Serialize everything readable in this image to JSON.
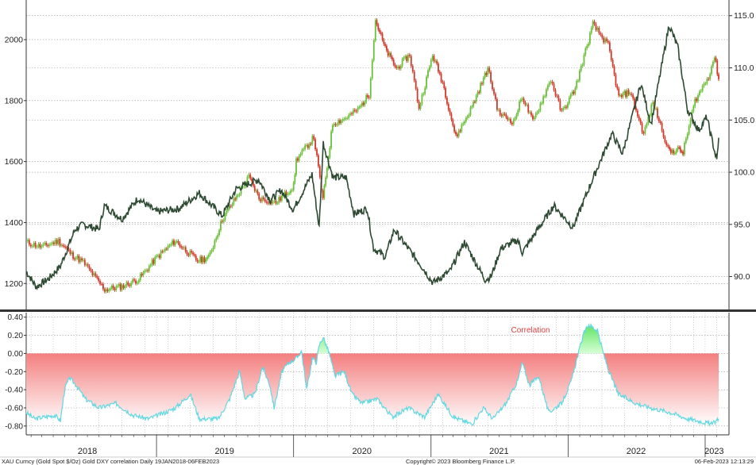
{
  "chart_data": [
    {
      "type": "line",
      "panel": "top",
      "y_left": {
        "ticks": [
          1200,
          1400,
          1600,
          1800,
          2000
        ],
        "lim": [
          1120,
          2130
        ]
      },
      "y_right": {
        "ticks": [
          "90.0",
          "95.0",
          "100.0",
          "105.0",
          "110.0",
          "115.0"
        ],
        "lim": [
          87,
          116.5
        ]
      },
      "grid": true,
      "series": [
        {
          "axis": "left",
          "style": "candlestick",
          "color": "#6bbf3a",
          "down_color": "#d13a2a",
          "points": [
            [
              "2018-01-19",
              1335
            ],
            [
              "2018-03-01",
              1320
            ],
            [
              "2018-04-15",
              1340
            ],
            [
              "2018-05-20",
              1295
            ],
            [
              "2018-06-20",
              1270
            ],
            [
              "2018-08-16",
              1180
            ],
            [
              "2018-10-01",
              1190
            ],
            [
              "2018-11-15",
              1215
            ],
            [
              "2019-01-01",
              1285
            ],
            [
              "2019-02-20",
              1340
            ],
            [
              "2019-04-20",
              1275
            ],
            [
              "2019-05-20",
              1285
            ],
            [
              "2019-06-25",
              1410
            ],
            [
              "2019-08-10",
              1500
            ],
            [
              "2019-09-04",
              1550
            ],
            [
              "2019-10-01",
              1480
            ],
            [
              "2019-11-15",
              1465
            ],
            [
              "2020-01-01",
              1520
            ],
            [
              "2020-01-08",
              1605
            ],
            [
              "2020-02-24",
              1680
            ],
            [
              "2020-03-19",
              1475
            ],
            [
              "2020-04-14",
              1725
            ],
            [
              "2020-05-15",
              1740
            ],
            [
              "2020-06-20",
              1770
            ],
            [
              "2020-07-20",
              1820
            ],
            [
              "2020-08-06",
              2065
            ],
            [
              "2020-09-01",
              1970
            ],
            [
              "2020-10-01",
              1905
            ],
            [
              "2020-11-05",
              1950
            ],
            [
              "2020-11-30",
              1775
            ],
            [
              "2021-01-05",
              1950
            ],
            [
              "2021-02-01",
              1860
            ],
            [
              "2021-03-08",
              1680
            ],
            [
              "2021-04-20",
              1780
            ],
            [
              "2021-06-01",
              1905
            ],
            [
              "2021-06-30",
              1760
            ],
            [
              "2021-08-09",
              1730
            ],
            [
              "2021-09-01",
              1815
            ],
            [
              "2021-09-29",
              1730
            ],
            [
              "2021-11-16",
              1870
            ],
            [
              "2021-12-15",
              1760
            ],
            [
              "2022-01-20",
              1840
            ],
            [
              "2022-03-08",
              2050
            ],
            [
              "2022-04-18",
              1980
            ],
            [
              "2022-05-16",
              1810
            ],
            [
              "2022-06-15",
              1830
            ],
            [
              "2022-07-21",
              1690
            ],
            [
              "2022-08-15",
              1795
            ],
            [
              "2022-09-28",
              1630
            ],
            [
              "2022-10-20",
              1640
            ],
            [
              "2022-11-03",
              1630
            ],
            [
              "2022-12-05",
              1800
            ],
            [
              "2023-01-10",
              1880
            ],
            [
              "2023-01-26",
              1945
            ],
            [
              "2023-02-06",
              1870
            ]
          ]
        },
        {
          "axis": "right",
          "style": "line",
          "color": "#2e4a33",
          "points": [
            [
              "2018-01-19",
              90.5
            ],
            [
              "2018-02-15",
              89.0
            ],
            [
              "2018-03-20",
              89.8
            ],
            [
              "2018-04-20",
              91.0
            ],
            [
              "2018-05-29",
              94.5
            ],
            [
              "2018-06-20",
              95.0
            ],
            [
              "2018-08-01",
              94.5
            ],
            [
              "2018-08-15",
              96.8
            ],
            [
              "2018-10-01",
              95.5
            ],
            [
              "2018-11-12",
              97.5
            ],
            [
              "2018-12-31",
              96.2
            ],
            [
              "2019-03-01",
              96.5
            ],
            [
              "2019-04-25",
              98.0
            ],
            [
              "2019-06-25",
              95.8
            ],
            [
              "2019-08-01",
              98.4
            ],
            [
              "2019-09-30",
              99.3
            ],
            [
              "2019-10-31",
              97.3
            ],
            [
              "2019-11-29",
              98.3
            ],
            [
              "2019-12-31",
              96.4
            ],
            [
              "2020-02-19",
              99.8
            ],
            [
              "2020-03-09",
              94.7
            ],
            [
              "2020-03-20",
              102.8
            ],
            [
              "2020-04-15",
              99.5
            ],
            [
              "2020-05-20",
              99.5
            ],
            [
              "2020-06-10",
              96.0
            ],
            [
              "2020-07-15",
              96.5
            ],
            [
              "2020-08-01",
              92.7
            ],
            [
              "2020-09-01",
              91.9
            ],
            [
              "2020-09-25",
              94.5
            ],
            [
              "2020-10-15",
              93.5
            ],
            [
              "2020-12-01",
              91.3
            ],
            [
              "2021-01-06",
              89.4
            ],
            [
              "2021-02-20",
              90.5
            ],
            [
              "2021-03-31",
              93.3
            ],
            [
              "2021-05-25",
              89.7
            ],
            [
              "2021-06-10",
              90.0
            ],
            [
              "2021-07-06",
              92.7
            ],
            [
              "2021-08-20",
              93.5
            ],
            [
              "2021-09-01",
              92.3
            ],
            [
              "2021-10-12",
              94.5
            ],
            [
              "2021-11-24",
              96.8
            ],
            [
              "2022-01-14",
              94.7
            ],
            [
              "2022-03-07",
              99.3
            ],
            [
              "2022-04-28",
              103.7
            ],
            [
              "2022-05-26",
              101.8
            ],
            [
              "2022-07-14",
              108.5
            ],
            [
              "2022-08-10",
              104.6
            ],
            [
              "2022-09-27",
              114.1
            ],
            [
              "2022-10-20",
              112.0
            ],
            [
              "2022-11-15",
              106.0
            ],
            [
              "2022-12-15",
              104.0
            ],
            [
              "2023-01-05",
              105.3
            ],
            [
              "2023-02-01",
              101.1
            ],
            [
              "2023-02-06",
              103.3
            ]
          ]
        }
      ]
    },
    {
      "type": "area",
      "panel": "bottom",
      "title": "Correlation",
      "y": {
        "ticks": [
          "0.40",
          "0.20",
          "0.00",
          "-0.20",
          "-0.40",
          "-0.60",
          "-0.80"
        ],
        "lim": [
          -0.88,
          0.45
        ]
      },
      "x": {
        "labels": [
          "2018",
          "2019",
          "2020",
          "2021",
          "2022",
          "2023"
        ]
      },
      "grid": true,
      "colors": {
        "positive": "#7ef07e",
        "negative": "#f47f7f",
        "line": "#63d8e2"
      },
      "points": [
        [
          "2018-01-19",
          -0.65
        ],
        [
          "2018-02-10",
          -0.72
        ],
        [
          "2018-03-10",
          -0.7
        ],
        [
          "2018-04-05",
          -0.68
        ],
        [
          "2018-04-20",
          -0.74
        ],
        [
          "2018-05-02",
          -0.38
        ],
        [
          "2018-05-15",
          -0.27
        ],
        [
          "2018-06-01",
          -0.35
        ],
        [
          "2018-06-25",
          -0.5
        ],
        [
          "2018-08-01",
          -0.6
        ],
        [
          "2018-09-15",
          -0.55
        ],
        [
          "2018-10-30",
          -0.68
        ],
        [
          "2018-12-10",
          -0.72
        ],
        [
          "2019-01-25",
          -0.65
        ],
        [
          "2019-02-20",
          -0.6
        ],
        [
          "2019-04-01",
          -0.45
        ],
        [
          "2019-04-25",
          -0.72
        ],
        [
          "2019-06-15",
          -0.72
        ],
        [
          "2019-07-15",
          -0.5
        ],
        [
          "2019-08-10",
          -0.2
        ],
        [
          "2019-08-25",
          -0.5
        ],
        [
          "2019-09-20",
          -0.45
        ],
        [
          "2019-10-10",
          -0.15
        ],
        [
          "2019-10-30",
          -0.35
        ],
        [
          "2019-11-10",
          -0.6
        ],
        [
          "2019-12-01",
          -0.2
        ],
        [
          "2019-12-20",
          -0.1
        ],
        [
          "2020-01-10",
          -0.05
        ],
        [
          "2020-01-22",
          0.03
        ],
        [
          "2020-02-05",
          -0.4
        ],
        [
          "2020-02-20",
          -0.05
        ],
        [
          "2020-03-01",
          -0.1
        ],
        [
          "2020-03-10",
          0.1
        ],
        [
          "2020-03-20",
          0.18
        ],
        [
          "2020-04-05",
          0.0
        ],
        [
          "2020-04-20",
          -0.25
        ],
        [
          "2020-05-15",
          -0.2
        ],
        [
          "2020-06-05",
          -0.45
        ],
        [
          "2020-07-01",
          -0.55
        ],
        [
          "2020-08-10",
          -0.5
        ],
        [
          "2020-09-20",
          -0.7
        ],
        [
          "2020-11-01",
          -0.6
        ],
        [
          "2020-12-15",
          -0.7
        ],
        [
          "2021-01-20",
          -0.45
        ],
        [
          "2021-03-01",
          -0.7
        ],
        [
          "2021-04-20",
          -0.78
        ],
        [
          "2021-05-20",
          -0.6
        ],
        [
          "2021-06-15",
          -0.72
        ],
        [
          "2021-07-20",
          -0.55
        ],
        [
          "2021-08-20",
          -0.3
        ],
        [
          "2021-09-01",
          -0.1
        ],
        [
          "2021-09-20",
          -0.35
        ],
        [
          "2021-10-15",
          -0.25
        ],
        [
          "2021-11-10",
          -0.65
        ],
        [
          "2021-12-15",
          -0.55
        ],
        [
          "2022-01-10",
          -0.3
        ],
        [
          "2022-01-25",
          -0.05
        ],
        [
          "2022-02-10",
          0.2
        ],
        [
          "2022-02-25",
          0.32
        ],
        [
          "2022-03-20",
          0.25
        ],
        [
          "2022-04-05",
          0.0
        ],
        [
          "2022-04-20",
          -0.2
        ],
        [
          "2022-05-15",
          -0.45
        ],
        [
          "2022-07-01",
          -0.55
        ],
        [
          "2022-08-10",
          -0.6
        ],
        [
          "2022-09-30",
          -0.65
        ],
        [
          "2022-11-15",
          -0.72
        ],
        [
          "2022-12-20",
          -0.75
        ],
        [
          "2023-01-20",
          -0.78
        ],
        [
          "2023-02-06",
          -0.72
        ]
      ]
    }
  ],
  "footer": {
    "left": "XAU Curncy (Gold Spot   $/Oz) Gold DXY correlation  Daily 19JAN2018-06FEB2023",
    "center": "Copyright© 2023 Bloomberg Finance L.P.",
    "right": "06-Feb-2023 12:13:29"
  }
}
